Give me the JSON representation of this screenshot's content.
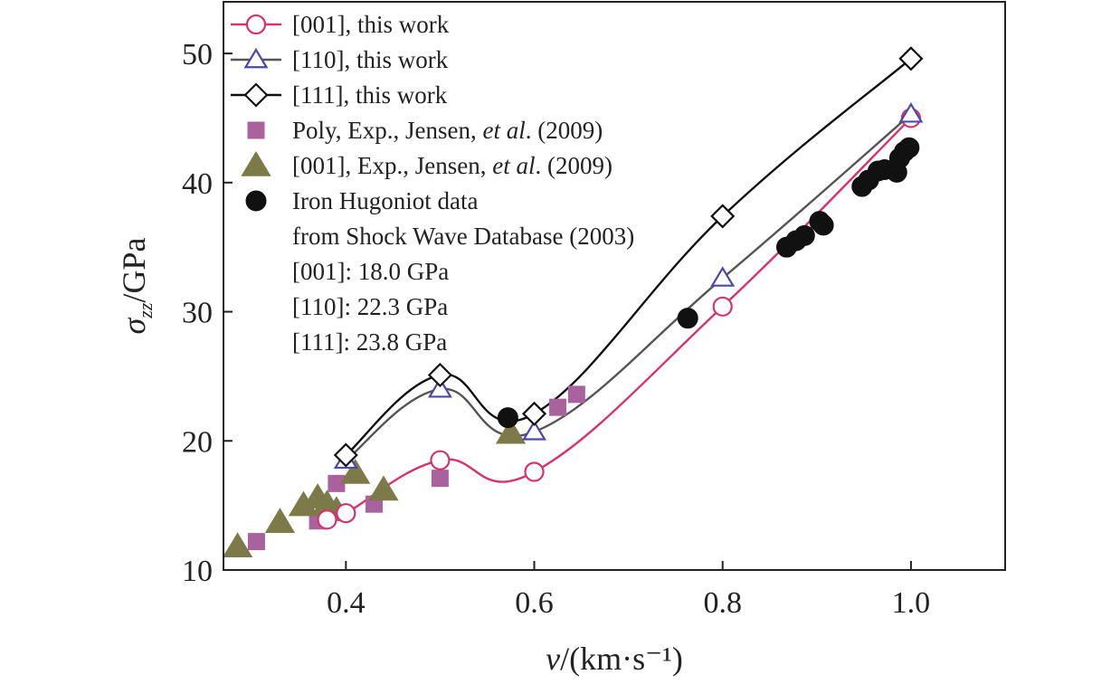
{
  "chart_data": {
    "type": "scatter",
    "xlim": [
      0.27,
      1.1
    ],
    "ylim": [
      10,
      54
    ],
    "grid": false,
    "legend_position": "top-left",
    "x_ticks": [
      0.4,
      0.6,
      0.8,
      1.0
    ],
    "x_tick_labels": [
      "0.4",
      "0.6",
      "0.8",
      "1.0"
    ],
    "y_ticks": [
      10,
      20,
      30,
      40,
      50
    ],
    "y_tick_labels": [
      "10",
      "20",
      "30",
      "40",
      "50"
    ],
    "xlabel": "v/(km·s⁻¹)",
    "ylabel": "σzz/GPa",
    "series": [
      {
        "name": "[001], this work",
        "marker": "circle-open",
        "color": "#d6336c",
        "line": true,
        "points": [
          [
            0.38,
            13.9
          ],
          [
            0.4,
            14.4
          ],
          [
            0.5,
            18.5
          ],
          [
            0.6,
            17.6
          ],
          [
            0.8,
            30.4
          ],
          [
            1.0,
            45.0
          ]
        ]
      },
      {
        "name": "[110], this work",
        "marker": "triangle-open",
        "color": "#4a4aa8",
        "line_color": "#555555",
        "line": true,
        "points": [
          [
            0.4,
            18.5
          ],
          [
            0.5,
            24.0
          ],
          [
            0.6,
            20.7
          ],
          [
            0.8,
            32.6
          ],
          [
            1.0,
            45.3
          ]
        ]
      },
      {
        "name": "[111], this work",
        "marker": "diamond-open",
        "color": "#111111",
        "line": true,
        "points": [
          [
            0.4,
            18.9
          ],
          [
            0.5,
            25.1
          ],
          [
            0.6,
            22.1
          ],
          [
            0.8,
            37.4
          ],
          [
            1.0,
            49.6
          ]
        ]
      },
      {
        "name": "Poly, Exp., Jensen, et al. (2009)",
        "name_parts": [
          "Poly, Exp., Jensen, ",
          "et al",
          ". (2009)"
        ],
        "marker": "square",
        "color": "#a9629e",
        "line": false,
        "points": [
          [
            0.305,
            12.2
          ],
          [
            0.37,
            13.8
          ],
          [
            0.39,
            16.7
          ],
          [
            0.43,
            15.1
          ],
          [
            0.5,
            17.1
          ],
          [
            0.625,
            22.6
          ],
          [
            0.645,
            23.6
          ]
        ]
      },
      {
        "name": "[001], Exp., Jensen, et al. (2009)",
        "name_parts": [
          "[001], Exp., Jensen, ",
          "et al",
          ". (2009)"
        ],
        "marker": "triangle",
        "color": "#7b7a48",
        "line": false,
        "points": [
          [
            0.285,
            11.8
          ],
          [
            0.33,
            13.7
          ],
          [
            0.355,
            15.0
          ],
          [
            0.37,
            15.6
          ],
          [
            0.38,
            15.1
          ],
          [
            0.39,
            14.6
          ],
          [
            0.41,
            17.5
          ],
          [
            0.44,
            16.2
          ],
          [
            0.575,
            20.6
          ]
        ]
      },
      {
        "name": "Iron Hugoniot data from Shock Wave Database (2003)",
        "name_lines": [
          "Iron Hugoniot data",
          "from Shock Wave Database (2003)"
        ],
        "marker": "circle",
        "color": "#111111",
        "line": false,
        "points": [
          [
            0.572,
            21.8
          ],
          [
            0.763,
            29.5
          ],
          [
            0.868,
            35.0
          ],
          [
            0.878,
            35.5
          ],
          [
            0.887,
            35.9
          ],
          [
            0.903,
            37.0
          ],
          [
            0.907,
            36.7
          ],
          [
            0.948,
            39.7
          ],
          [
            0.955,
            40.2
          ],
          [
            0.965,
            40.9
          ],
          [
            0.972,
            41.0
          ],
          [
            0.985,
            40.8
          ],
          [
            0.988,
            41.9
          ],
          [
            0.993,
            42.4
          ],
          [
            0.998,
            42.7
          ]
        ]
      }
    ],
    "annotations": [
      "[001]: 18.0 GPa",
      "[110]: 22.3 GPa",
      "[111]: 23.8 GPa"
    ]
  }
}
